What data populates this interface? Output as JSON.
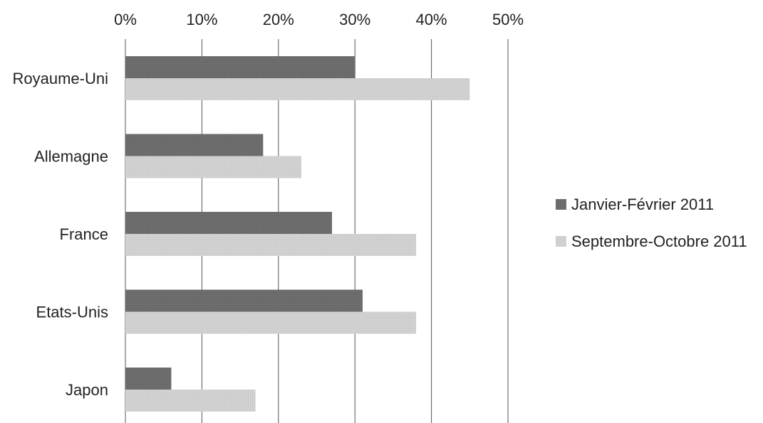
{
  "chart_data": {
    "type": "bar",
    "orientation": "horizontal",
    "title": "",
    "xlabel": "",
    "ylabel": "",
    "categories": [
      "Royaume-Uni",
      "Allemagne",
      "France",
      "Etats-Unis",
      "Japon"
    ],
    "series": [
      {
        "name": "Janvier-Février 2011",
        "values": [
          30,
          18,
          27,
          31,
          6
        ],
        "color": "#6e6e6e"
      },
      {
        "name": "Septembre-Octobre 2011",
        "values": [
          45,
          23,
          38,
          38,
          17
        ],
        "color": "#d0d0d0"
      }
    ],
    "xlim": [
      0,
      50
    ],
    "x_ticks": [
      "0%",
      "10%",
      "20%",
      "30%",
      "40%",
      "50%"
    ],
    "x_axis_position": "top",
    "grid": true,
    "legend_position": "right"
  }
}
